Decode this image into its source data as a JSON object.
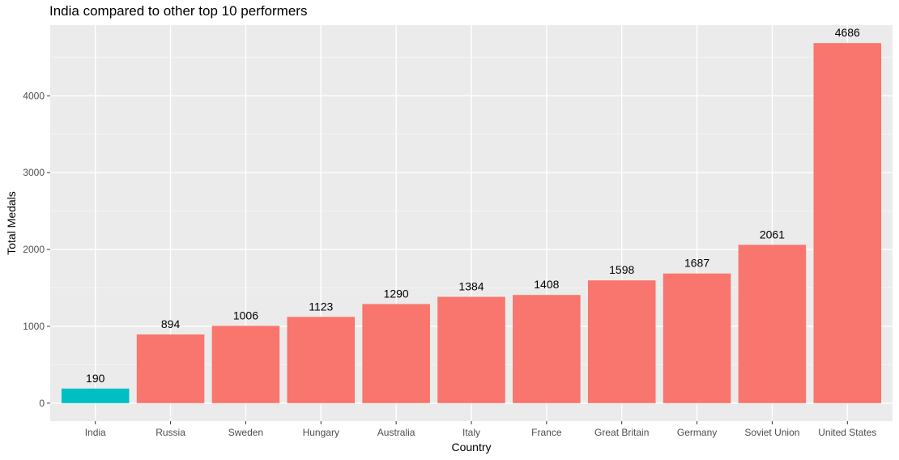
{
  "chart_data": {
    "type": "bar",
    "title": "India compared to other top 10 performers",
    "xlabel": "Country",
    "ylabel": "Total Medals",
    "categories": [
      "India",
      "Russia",
      "Sweden",
      "Hungary",
      "Australia",
      "Italy",
      "France",
      "Great Britain",
      "Germany",
      "Soviet Union",
      "United States"
    ],
    "values": [
      190,
      894,
      1006,
      1123,
      1290,
      1384,
      1408,
      1598,
      1687,
      2061,
      4686
    ],
    "highlight": [
      true,
      false,
      false,
      false,
      false,
      false,
      false,
      false,
      false,
      false,
      false
    ],
    "colors": {
      "highlight": "#00BFC4",
      "other": "#F8766D",
      "panel": "#EBEBEB",
      "grid_major": "#FFFFFF",
      "grid_minor": "#F5F5F5"
    },
    "yticks": [
      0,
      1000,
      2000,
      3000,
      4000
    ],
    "ylim": [
      -234,
      4920
    ],
    "grid": true,
    "legend": "none"
  }
}
